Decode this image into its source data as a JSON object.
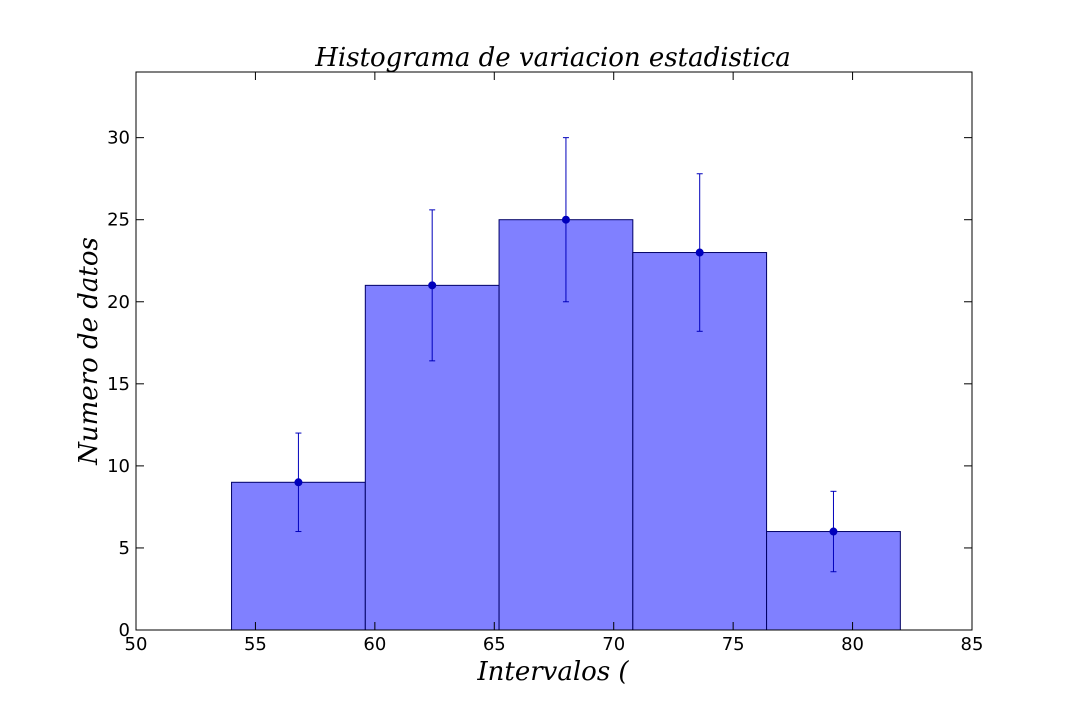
{
  "chart_data": {
    "type": "bar",
    "title": "Histograma de variacion estadistica",
    "xlabel": "Intervalos (",
    "ylabel": "Numero de datos",
    "xlim": [
      50,
      85
    ],
    "ylim": [
      0,
      34
    ],
    "x_ticks": [
      50,
      55,
      60,
      65,
      70,
      75,
      80,
      85
    ],
    "y_ticks": [
      0,
      5,
      10,
      15,
      20,
      25,
      30
    ],
    "bins": [
      {
        "start": 54.0,
        "end": 59.6,
        "count": 9,
        "err_low": 6.0,
        "err_high": 12.0
      },
      {
        "start": 59.6,
        "end": 65.2,
        "count": 21,
        "err_low": 16.4,
        "err_high": 25.6
      },
      {
        "start": 65.2,
        "end": 70.8,
        "count": 25,
        "err_low": 20.0,
        "err_high": 30.0
      },
      {
        "start": 70.8,
        "end": 76.4,
        "count": 23,
        "err_low": 18.2,
        "err_high": 27.8
      },
      {
        "start": 76.4,
        "end": 82.0,
        "count": 6,
        "err_low": 3.55,
        "err_high": 8.45
      }
    ],
    "grid": false,
    "colors": {
      "bar_fill": "#8080ff",
      "bar_edge": "#000066",
      "error": "#0000bb"
    }
  }
}
